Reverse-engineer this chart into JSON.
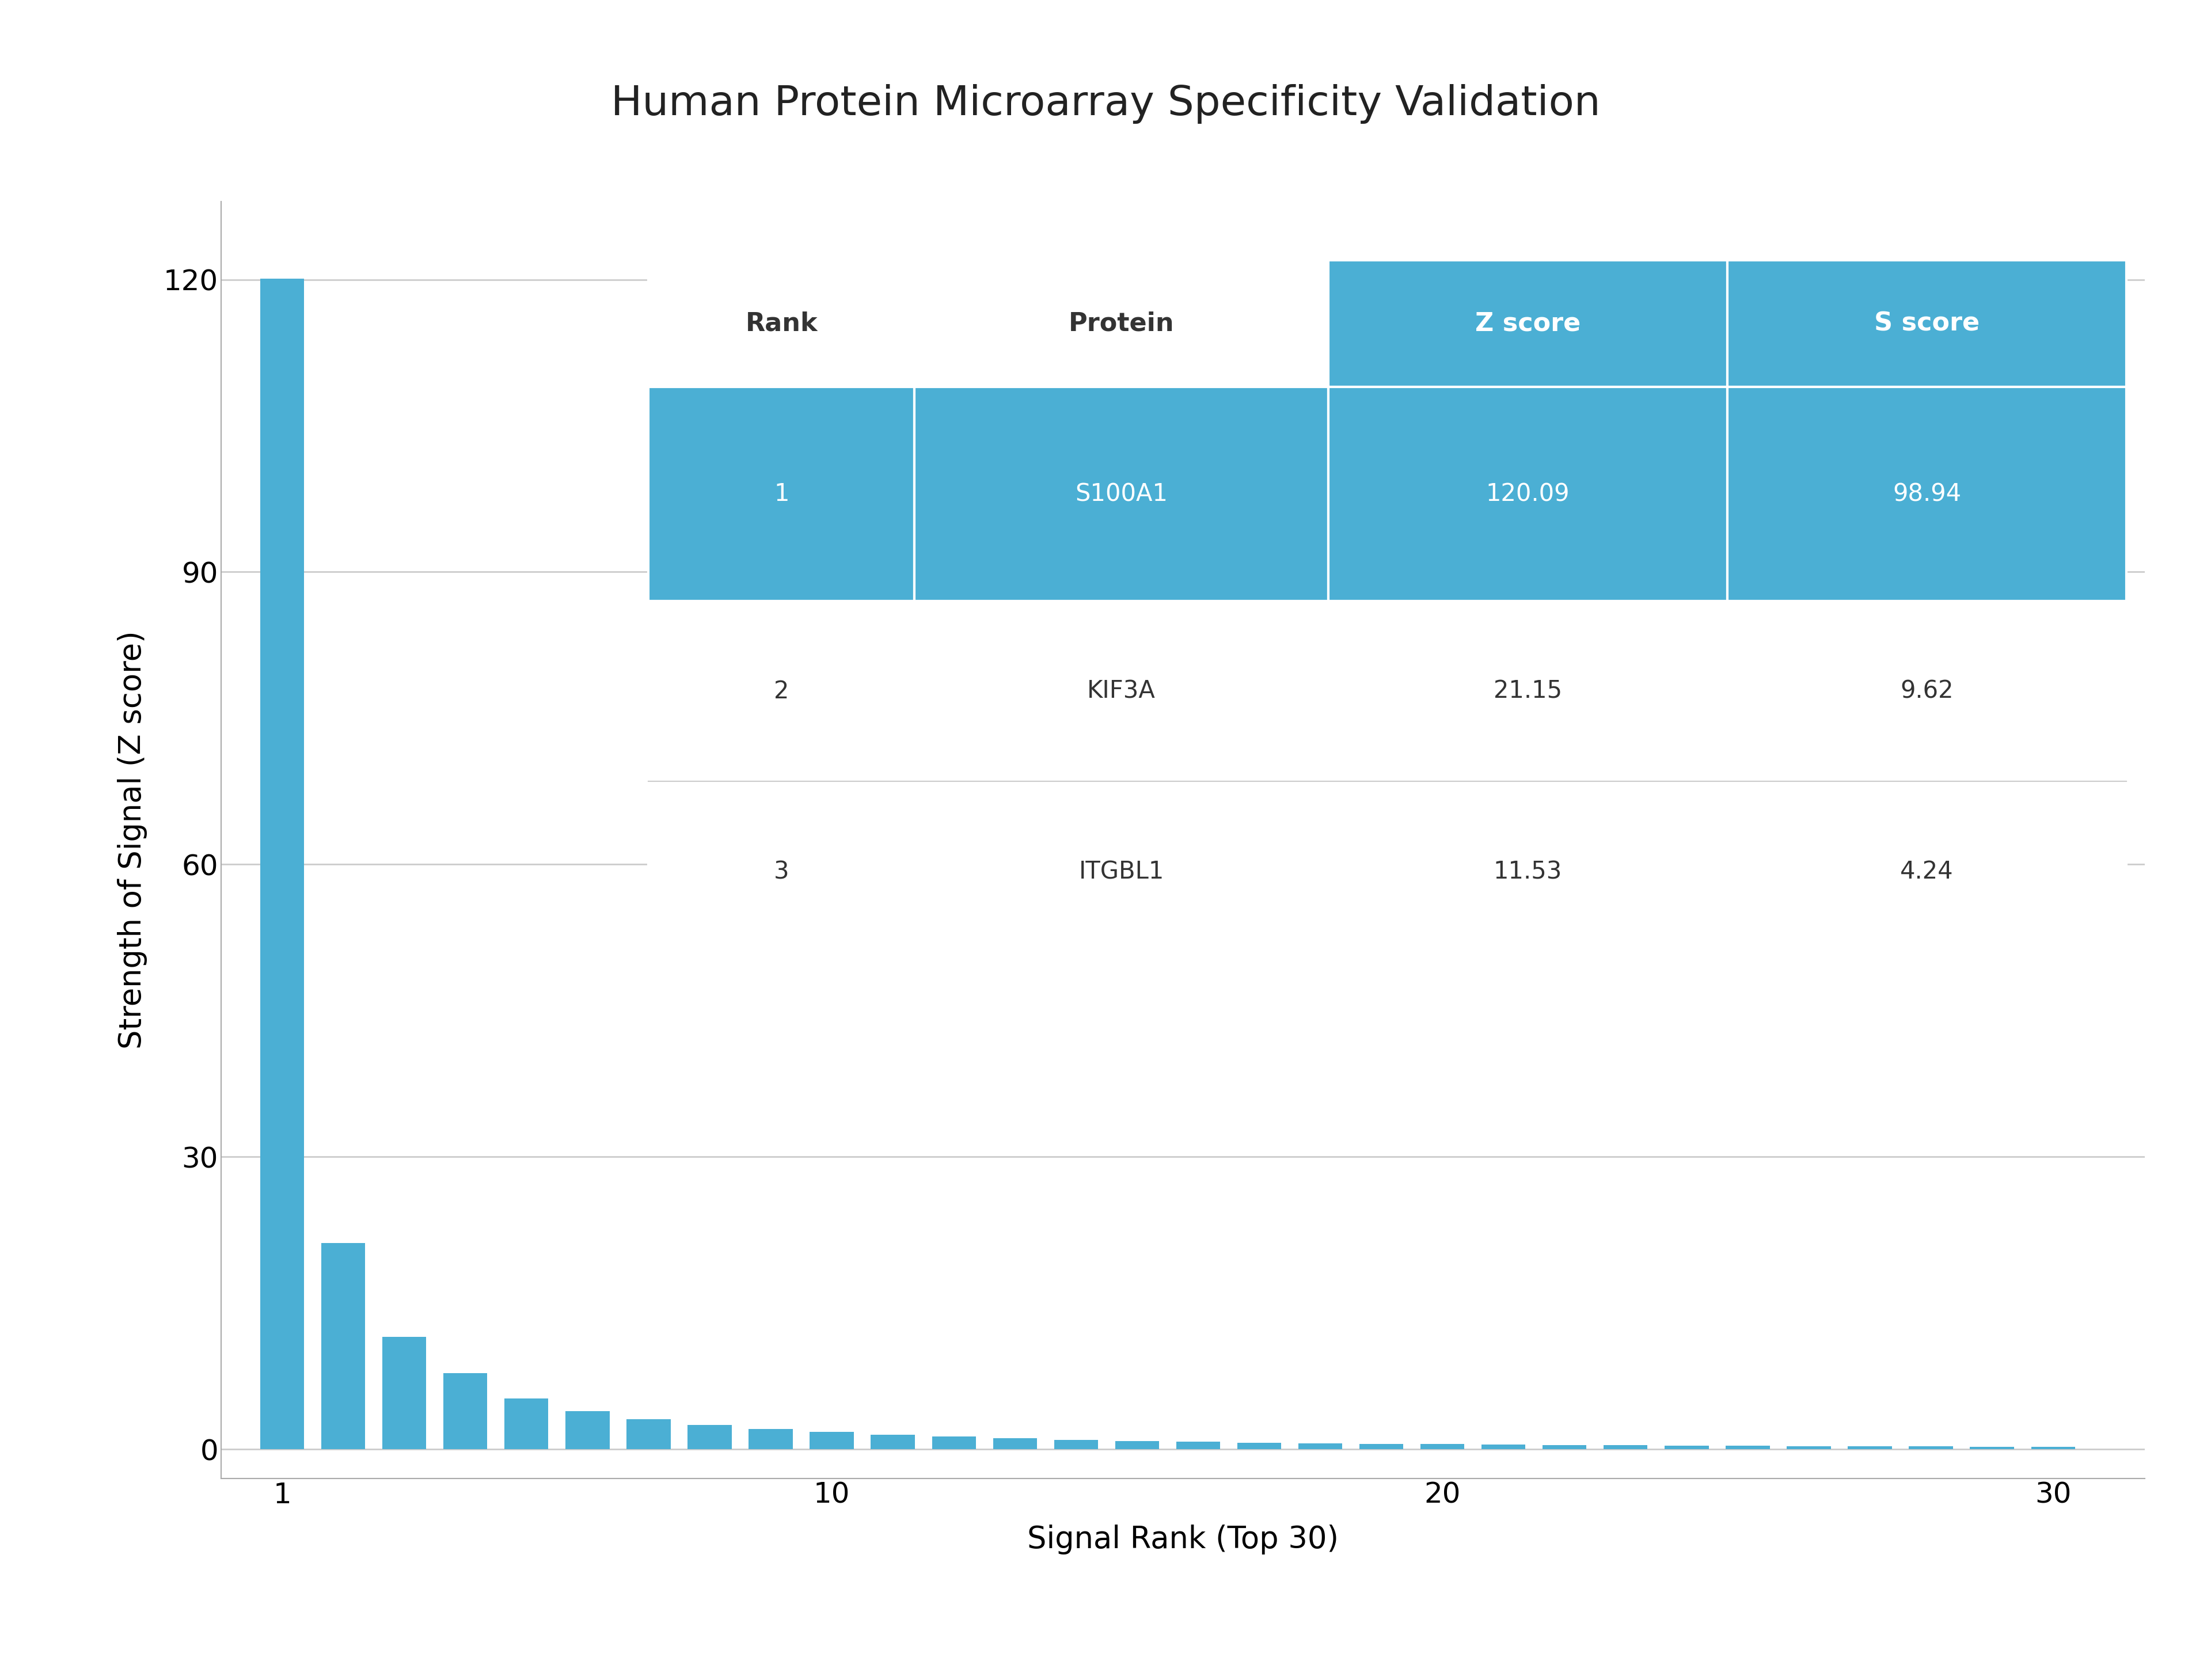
{
  "title": "Human Protein Microarray Specificity Validation",
  "xlabel": "Signal Rank (Top 30)",
  "ylabel": "Strength of Signal (Z score)",
  "bar_color": "#4BAFD4",
  "background_color": "#ffffff",
  "xlim": [
    0.0,
    31.5
  ],
  "ylim": [
    -3,
    128
  ],
  "yticks": [
    0,
    30,
    60,
    90,
    120
  ],
  "xticks": [
    1,
    10,
    20,
    30
  ],
  "title_fontsize": 52,
  "axis_label_fontsize": 38,
  "tick_fontsize": 36,
  "z_scores": [
    120.09,
    21.15,
    11.53,
    7.8,
    5.2,
    3.9,
    3.1,
    2.5,
    2.1,
    1.8,
    1.5,
    1.3,
    1.1,
    0.95,
    0.85,
    0.75,
    0.68,
    0.62,
    0.56,
    0.51,
    0.47,
    0.43,
    0.4,
    0.37,
    0.34,
    0.32,
    0.3,
    0.28,
    0.26,
    0.24
  ],
  "table_header": [
    "Rank",
    "Protein",
    "Z score",
    "S score"
  ],
  "table_rows": [
    [
      "1",
      "S100A1",
      "120.09",
      "98.94"
    ],
    [
      "2",
      "KIF3A",
      "21.15",
      "9.62"
    ],
    [
      "3",
      "ITGBL1",
      "11.53",
      "4.24"
    ]
  ],
  "table_blue": "#4BAFD4",
  "table_white": "#ffffff",
  "table_dark_text": "#333333",
  "table_fontsize": 30,
  "table_header_fontsize": 32,
  "grid_color": "#cccccc",
  "spine_color": "#aaaaaa",
  "bar_width": 0.72
}
